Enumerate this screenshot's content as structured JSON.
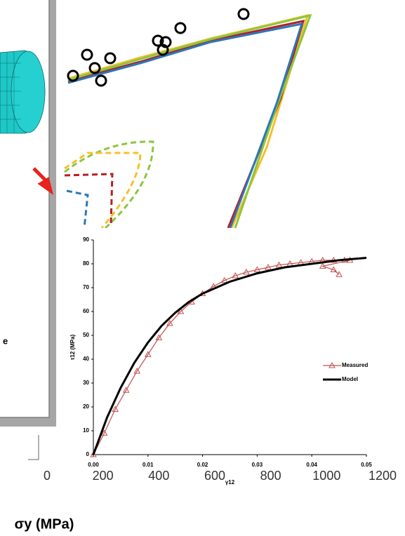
{
  "chart_data": [
    {
      "type": "axis",
      "xlabel": "σy (MPa)",
      "xlim": [
        0,
        1200
      ],
      "xticks": [
        0,
        200,
        400,
        600,
        800,
        1000,
        1200
      ]
    },
    {
      "type": "line",
      "xlabel": "γ12",
      "ylabel": "τ12 (MPa)",
      "xlim": [
        0,
        0.05
      ],
      "xticks": [
        {
          "value": 0,
          "label": "0.00"
        },
        {
          "value": 0.01,
          "label": "0.01"
        },
        {
          "value": 0.02,
          "label": "0.02"
        },
        {
          "value": 0.03,
          "label": "0.03"
        },
        {
          "value": 0.04,
          "label": "0.04"
        },
        {
          "value": 0.05,
          "label": "0.05"
        }
      ],
      "ylim": [
        0,
        90
      ],
      "yticks": [
        0,
        10,
        20,
        30,
        40,
        50,
        60,
        70,
        80,
        90
      ],
      "legend": "right",
      "series": [
        {
          "name": "Measured",
          "color": "#c0504d",
          "marker": "triangle",
          "x": [
            0,
            0.002,
            0.004,
            0.006,
            0.008,
            0.01,
            0.012,
            0.014,
            0.016,
            0.018,
            0.02,
            0.022,
            0.024,
            0.026,
            0.028,
            0.03,
            0.032,
            0.034,
            0.036,
            0.038,
            0.04,
            0.042,
            0.044,
            0.046,
            0.047,
            0.042,
            0.044,
            0.045
          ],
          "values": [
            0,
            9,
            19,
            27,
            35,
            42,
            49,
            55,
            60,
            64,
            67.5,
            70.5,
            73,
            75,
            76.5,
            77.5,
            78.5,
            79.5,
            80,
            80.5,
            81,
            81.5,
            81.5,
            81.5,
            81.5,
            79,
            77.5,
            75.5
          ]
        },
        {
          "name": "Model",
          "color": "#000000",
          "marker": "none",
          "x": [
            0,
            0.0025,
            0.005,
            0.0075,
            0.01,
            0.0125,
            0.015,
            0.0175,
            0.02,
            0.025,
            0.03,
            0.035,
            0.04,
            0.045,
            0.05
          ],
          "values": [
            0,
            15.5,
            28,
            38.5,
            47,
            54,
            59.5,
            64,
            67.5,
            72.5,
            76,
            78.5,
            80,
            81.5,
            82.5
          ]
        }
      ]
    }
  ],
  "left_panel": {
    "text": "e"
  }
}
